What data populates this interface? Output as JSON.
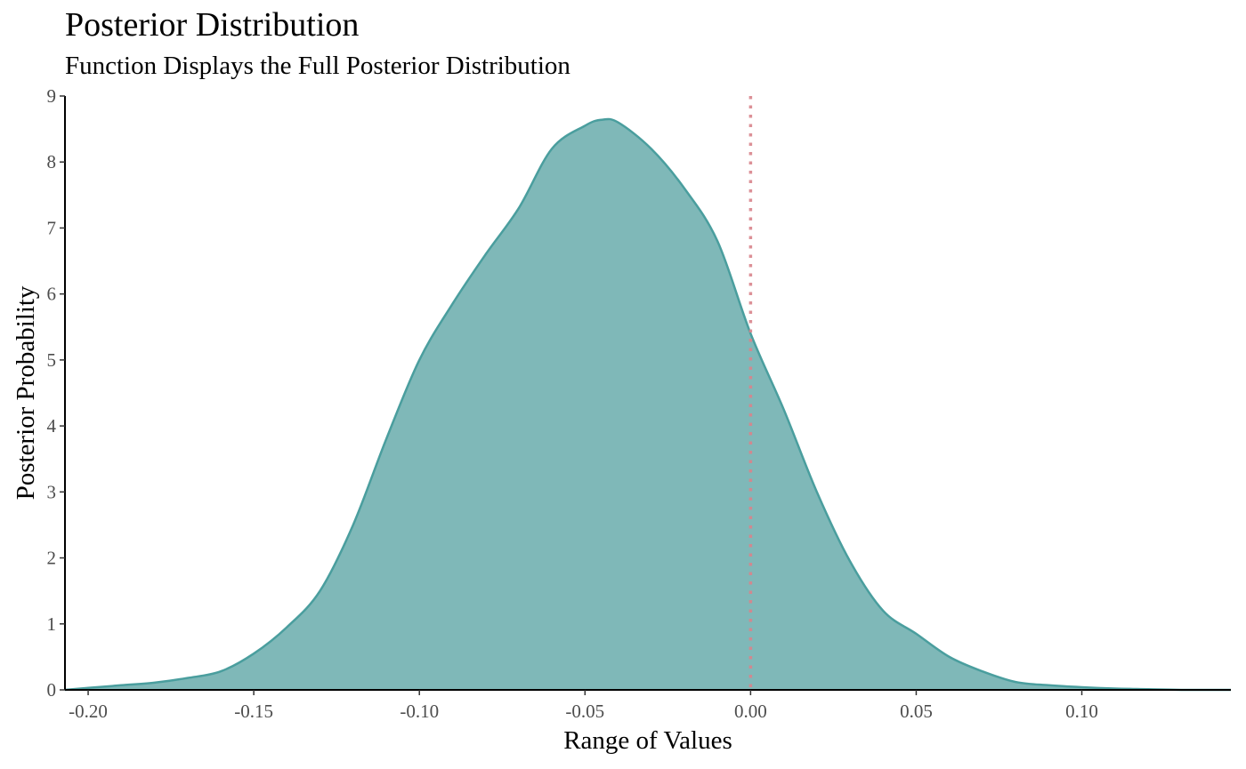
{
  "colors": {
    "density_fill": "#7fb8b8",
    "density_stroke": "#4a9e9e",
    "reference_line": "#d8848c",
    "axis": "#000000",
    "tick_text": "#4d4d4d"
  },
  "chart_data": {
    "type": "area",
    "title": "Posterior Distribution",
    "subtitle": "Function Displays the Full Posterior Distribution",
    "xlabel": "Range of Values",
    "ylabel": "Posterior Probability",
    "xlim": [
      -0.207,
      0.145
    ],
    "ylim": [
      0,
      9
    ],
    "x_ticks": [
      -0.2,
      -0.15,
      -0.1,
      -0.05,
      0.0,
      0.05,
      0.1
    ],
    "x_tick_labels": [
      "-0.20",
      "-0.15",
      "-0.10",
      "-0.05",
      "0.00",
      "0.05",
      "0.10"
    ],
    "y_ticks": [
      0,
      1,
      2,
      3,
      4,
      5,
      6,
      7,
      8,
      9
    ],
    "y_tick_labels": [
      "0",
      "1",
      "2",
      "3",
      "4",
      "5",
      "6",
      "7",
      "8",
      "9"
    ],
    "grid": false,
    "legend": "none",
    "reference_line": {
      "x": 0.0,
      "style": "dotted"
    },
    "series": [
      {
        "x": [
          -0.207,
          -0.2,
          -0.19,
          -0.18,
          -0.17,
          -0.16,
          -0.15,
          -0.14,
          -0.13,
          -0.12,
          -0.11,
          -0.1,
          -0.09,
          -0.08,
          -0.07,
          -0.06,
          -0.05,
          -0.045,
          -0.04,
          -0.03,
          -0.02,
          -0.01,
          0.0,
          0.01,
          0.02,
          0.03,
          0.04,
          0.05,
          0.06,
          0.07,
          0.08,
          0.09,
          0.1,
          0.11,
          0.12,
          0.13,
          0.145
        ],
        "values": [
          0.0,
          0.03,
          0.07,
          0.11,
          0.18,
          0.28,
          0.55,
          0.95,
          1.5,
          2.5,
          3.8,
          5.0,
          5.85,
          6.6,
          7.3,
          8.2,
          8.55,
          8.64,
          8.6,
          8.2,
          7.6,
          6.8,
          5.4,
          4.25,
          3.0,
          1.95,
          1.2,
          0.85,
          0.5,
          0.28,
          0.12,
          0.07,
          0.04,
          0.02,
          0.01,
          0.0,
          0.0
        ]
      }
    ]
  }
}
